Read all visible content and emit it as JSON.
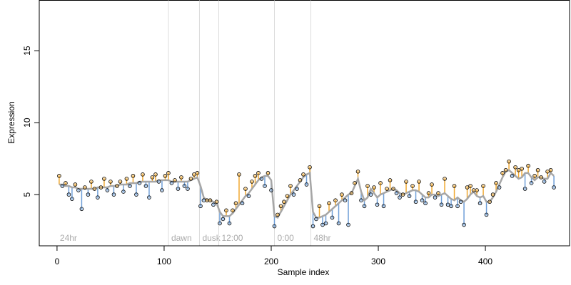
{
  "chart_data": {
    "type": "scatter",
    "xlabel": "Sample index",
    "ylabel": "Expression",
    "xlim": [
      -16.6,
      478.6
    ],
    "ylim": [
      1.44,
      18.5
    ],
    "xticks": [
      0,
      100,
      200,
      300,
      400
    ],
    "yticks": [
      5,
      10,
      15
    ],
    "above_color": "#f0a830",
    "below_color": "#6f9fd8",
    "trend_color": "#a6a6a6",
    "marker_line_color": "#dcdcdc",
    "label_color": "#aaaaaa",
    "markers": [
      {
        "label": "24hr",
        "x": 0,
        "line": false
      },
      {
        "label": "dawn",
        "x": 104,
        "line": true
      },
      {
        "label": "dusk",
        "x": 133,
        "line": true
      },
      {
        "label": "12:00",
        "x": 151,
        "line": true
      },
      {
        "label": "0:00",
        "x": 203,
        "line": true
      },
      {
        "label": "48hr",
        "x": 237,
        "line": true
      }
    ],
    "x": [
      2,
      5,
      8,
      11,
      14,
      17,
      20,
      23,
      26,
      29,
      32,
      35,
      38,
      41,
      44,
      47,
      50,
      53,
      56,
      59,
      62,
      65,
      68,
      71,
      74,
      77,
      80,
      83,
      86,
      89,
      92,
      95,
      98,
      101,
      104,
      107,
      110,
      113,
      116,
      119,
      122,
      125,
      128,
      131,
      134,
      137,
      140,
      143,
      146,
      149,
      152,
      155,
      158,
      161,
      164,
      167,
      170,
      173,
      176,
      179,
      182,
      185,
      188,
      191,
      194,
      197,
      200,
      203,
      206,
      209,
      212,
      215,
      218,
      221,
      224,
      227,
      230,
      233,
      236,
      239,
      242,
      245,
      248,
      251,
      254,
      257,
      260,
      263,
      266,
      269,
      272,
      275,
      278,
      281,
      284,
      287,
      290,
      293,
      296,
      299,
      302,
      305,
      308,
      311,
      314,
      317,
      320,
      323,
      326,
      329,
      332,
      335,
      338,
      341,
      344,
      347,
      350,
      353,
      356,
      359,
      362,
      365,
      368,
      371,
      374,
      377,
      380,
      383,
      386,
      389,
      392,
      395,
      398,
      401,
      404,
      407,
      410,
      413,
      416,
      419,
      422,
      425,
      428,
      431,
      434,
      437,
      440,
      443,
      446,
      449,
      452,
      455,
      458,
      461,
      464
    ],
    "values": [
      6.3,
      5.6,
      5.8,
      5.0,
      4.7,
      5.7,
      5.3,
      4.0,
      5.5,
      5.0,
      5.9,
      5.4,
      4.8,
      5.5,
      6.1,
      5.3,
      5.9,
      5.0,
      5.6,
      5.9,
      5.2,
      6.1,
      5.6,
      6.3,
      5.0,
      5.8,
      6.4,
      5.6,
      4.8,
      6.2,
      6.4,
      5.9,
      5.3,
      6.3,
      6.5,
      5.8,
      6.0,
      5.4,
      6.2,
      5.6,
      5.4,
      6.1,
      6.4,
      6.5,
      4.2,
      4.6,
      4.6,
      4.6,
      4.3,
      4.5,
      3.0,
      3.3,
      3.9,
      3.0,
      3.9,
      4.4,
      6.4,
      4.4,
      5.4,
      4.9,
      5.9,
      6.3,
      6.5,
      6.1,
      5.6,
      6.5,
      5.3,
      2.8,
      3.6,
      4.2,
      4.5,
      4.9,
      5.6,
      5.0,
      5.4,
      6.0,
      6.4,
      5.7,
      6.9,
      2.8,
      3.3,
      4.2,
      2.9,
      3.0,
      4.4,
      3.4,
      4.6,
      3.0,
      5.0,
      4.6,
      2.9,
      5.1,
      5.8,
      6.6,
      4.6,
      4.2,
      5.6,
      5.0,
      5.5,
      4.3,
      5.8,
      4.2,
      5.4,
      6.0,
      5.4,
      5.1,
      4.8,
      5.0,
      5.9,
      4.9,
      5.6,
      4.5,
      5.9,
      4.6,
      4.4,
      5.1,
      5.7,
      4.8,
      5.1,
      4.3,
      6.1,
      4.3,
      4.2,
      5.6,
      4.2,
      4.5,
      2.9,
      5.5,
      5.6,
      5.3,
      5.3,
      4.4,
      5.6,
      3.6,
      4.5,
      5.0,
      5.8,
      5.5,
      6.5,
      6.7,
      7.3,
      6.3,
      6.9,
      6.7,
      6.8,
      5.4,
      7.0,
      5.8,
      6.3,
      6.7,
      6.2,
      5.9,
      6.6,
      6.7,
      5.5
    ],
    "trend": [
      5.7,
      5.7,
      5.6,
      5.6,
      5.5,
      5.5,
      5.4,
      5.4,
      5.4,
      5.4,
      5.4,
      5.4,
      5.5,
      5.5,
      5.5,
      5.5,
      5.6,
      5.6,
      5.6,
      5.7,
      5.7,
      5.7,
      5.8,
      5.8,
      5.8,
      5.9,
      5.9,
      5.9,
      5.9,
      5.9,
      5.9,
      6.0,
      6.0,
      6.0,
      6.0,
      5.9,
      5.9,
      5.9,
      5.9,
      5.9,
      5.9,
      6.0,
      6.1,
      6.2,
      5.6,
      4.8,
      4.6,
      4.6,
      4.5,
      4.4,
      3.8,
      3.5,
      3.5,
      3.5,
      3.7,
      4.0,
      4.3,
      4.6,
      4.9,
      5.1,
      5.4,
      5.7,
      6.0,
      6.2,
      6.3,
      6.3,
      6.0,
      3.5,
      3.4,
      3.8,
      4.2,
      4.6,
      5.0,
      5.3,
      5.6,
      5.9,
      6.2,
      6.4,
      6.5,
      3.8,
      3.4,
      3.4,
      3.5,
      3.6,
      3.8,
      4.0,
      4.2,
      4.4,
      4.6,
      4.8,
      5.0,
      5.1,
      5.6,
      6.1,
      5.2,
      4.6,
      4.8,
      5.4,
      5.1,
      4.8,
      5.0,
      5.1,
      5.2,
      5.3,
      5.4,
      5.3,
      5.1,
      5.0,
      5.1,
      5.2,
      5.3,
      5.3,
      5.2,
      5.0,
      4.8,
      4.8,
      5.0,
      5.0,
      4.9,
      5.0,
      5.1,
      4.9,
      4.7,
      4.6,
      4.8,
      4.6,
      4.5,
      4.7,
      5.0,
      5.2,
      4.9,
      4.8,
      4.9,
      4.5,
      4.5,
      4.8,
      5.2,
      5.7,
      6.2,
      6.6,
      6.7,
      6.5,
      6.3,
      6.1,
      6.2,
      6.5,
      6.5,
      6.2,
      6.0,
      6.2,
      6.2,
      6.1,
      6.1,
      6.5,
      6.3
    ]
  }
}
